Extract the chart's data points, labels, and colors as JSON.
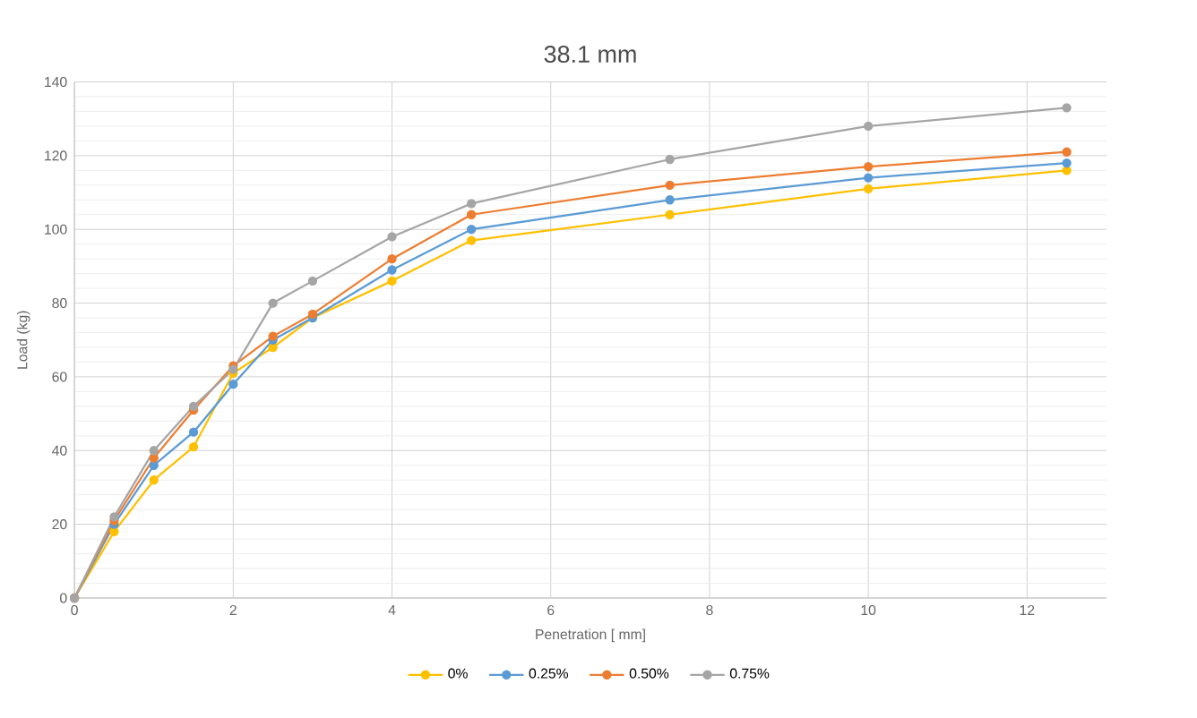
{
  "chart_data": {
    "type": "line",
    "title": "38.1 mm",
    "xlabel": "Penetration [ mm]",
    "ylabel": "Load (kg)",
    "x": [
      0,
      0.5,
      1,
      1.5,
      2,
      2.5,
      3,
      4,
      5,
      7.5,
      10,
      12.5
    ],
    "series": [
      {
        "name": "0%",
        "color": "#ffc000",
        "values": [
          0,
          18,
          32,
          41,
          61,
          68,
          76,
          86,
          97,
          104,
          111,
          116
        ]
      },
      {
        "name": "0.25%",
        "color": "#5b9bd5",
        "values": [
          0,
          20,
          36,
          45,
          58,
          70,
          76,
          89,
          100,
          108,
          114,
          118
        ]
      },
      {
        "name": "0.50%",
        "color": "#ed7d31",
        "values": [
          0,
          21,
          38,
          51,
          63,
          71,
          77,
          92,
          104,
          112,
          117,
          121
        ]
      },
      {
        "name": "0.75%",
        "color": "#a5a5a5",
        "values": [
          0,
          22,
          40,
          52,
          62,
          80,
          86,
          98,
          107,
          119,
          128,
          133
        ]
      }
    ],
    "xlim": [
      0,
      13
    ],
    "xticks": [
      0,
      2,
      4,
      6,
      8,
      10,
      12
    ],
    "ylim": [
      0,
      140
    ],
    "yticks": [
      0,
      20,
      40,
      60,
      80,
      100,
      120,
      140
    ],
    "grid": true,
    "legend": "bottom",
    "marker": "circle",
    "line_style": "solid"
  }
}
